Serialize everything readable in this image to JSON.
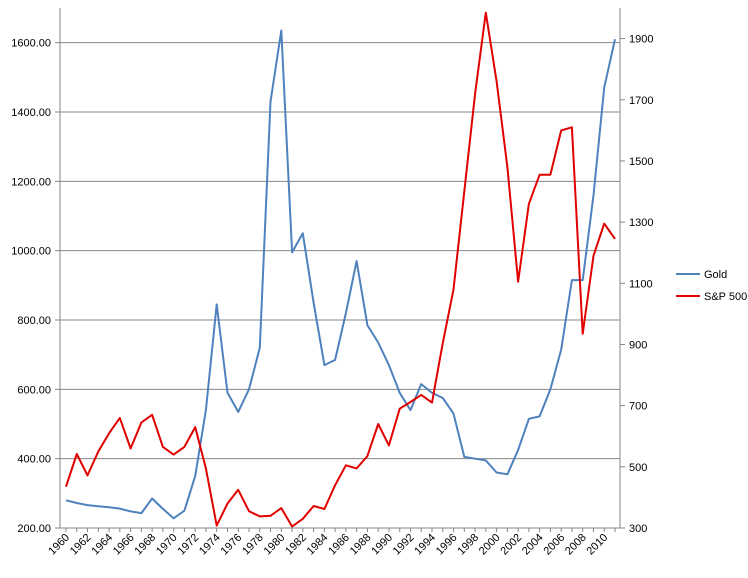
{
  "chart_data": {
    "type": "line",
    "title": "",
    "xlabel": "",
    "ylabel_left": "",
    "ylabel_right": "",
    "x": [
      1960,
      1961,
      1962,
      1963,
      1964,
      1965,
      1966,
      1967,
      1968,
      1969,
      1970,
      1971,
      1972,
      1973,
      1974,
      1975,
      1976,
      1977,
      1978,
      1979,
      1980,
      1981,
      1982,
      1983,
      1984,
      1985,
      1986,
      1987,
      1988,
      1989,
      1990,
      1991,
      1992,
      1993,
      1994,
      1995,
      1996,
      1997,
      1998,
      1999,
      2000,
      2001,
      2002,
      2003,
      2004,
      2005,
      2006,
      2007,
      2008,
      2009,
      2010,
      2011
    ],
    "x_tick_labels": [
      "1960",
      "1962",
      "1964",
      "1966",
      "1968",
      "1970",
      "1972",
      "1974",
      "1976",
      "1978",
      "1980",
      "1982",
      "1984",
      "1986",
      "1988",
      "1990",
      "1992",
      "1994",
      "1996",
      "1998",
      "2000",
      "2002",
      "2004",
      "2006",
      "2008",
      "2010"
    ],
    "x_tick_values": [
      1960,
      1962,
      1964,
      1966,
      1968,
      1970,
      1972,
      1974,
      1976,
      1978,
      1980,
      1982,
      1984,
      1986,
      1988,
      1990,
      1992,
      1994,
      1996,
      1998,
      2000,
      2002,
      2004,
      2006,
      2008,
      2010
    ],
    "y_left": {
      "range": [
        200,
        1700
      ],
      "ticks": [
        200,
        400,
        600,
        800,
        1000,
        1200,
        1400,
        1600
      ],
      "tick_labels": [
        "200.00",
        "400.00",
        "600.00",
        "800.00",
        "1000.00",
        "1200.00",
        "1400.00",
        "1600.00"
      ]
    },
    "y_right": {
      "range": [
        300,
        2000
      ],
      "ticks": [
        300,
        500,
        700,
        900,
        1100,
        1300,
        1500,
        1700,
        1900
      ],
      "tick_labels": [
        "300",
        "500",
        "700",
        "900",
        "1100",
        "1300",
        "1500",
        "1700",
        "1900"
      ]
    },
    "grid": true,
    "legend_position": "right",
    "series": [
      {
        "name": "Gold",
        "axis": "left",
        "color": "#4f81bd",
        "values": [
          280,
          272,
          266,
          263,
          260,
          256,
          248,
          243,
          285,
          255,
          228,
          250,
          350,
          540,
          845,
          590,
          535,
          600,
          720,
          1430,
          1635,
          995,
          1050,
          850,
          670,
          685,
          820,
          970,
          785,
          735,
          670,
          590,
          540,
          615,
          590,
          575,
          530,
          405,
          400,
          395,
          360,
          355,
          425,
          515,
          522,
          600,
          715,
          915,
          915,
          1160,
          1470,
          1610
        ]
      },
      {
        "name": "S&P 500",
        "axis": "right",
        "color": "#e00000",
        "values": [
          435,
          542,
          472,
          550,
          610,
          660,
          560,
          645,
          670,
          565,
          540,
          565,
          630,
          495,
          308,
          380,
          425,
          355,
          338,
          340,
          365,
          305,
          330,
          372,
          362,
          440,
          505,
          495,
          535,
          640,
          570,
          690,
          712,
          735,
          710,
          905,
          1080,
          1400,
          1720,
          1985,
          1760,
          1480,
          1105,
          1360,
          1455,
          1455,
          1600,
          1610,
          935,
          1190,
          1295,
          1245
        ]
      }
    ]
  }
}
